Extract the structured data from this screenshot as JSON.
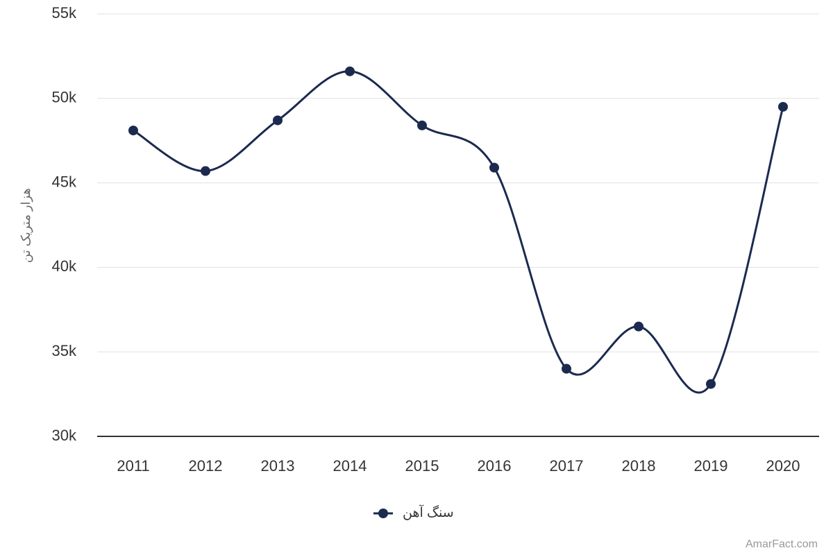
{
  "chart_data": {
    "type": "line",
    "y_label": "هزار متریک تن",
    "categories": [
      "2011",
      "2012",
      "2013",
      "2014",
      "2015",
      "2016",
      "2017",
      "2018",
      "2019",
      "2020"
    ],
    "series": [
      {
        "name": "سنگ آهن",
        "color": "#1b2a4e",
        "values": [
          48100,
          45700,
          48700,
          51600,
          48400,
          45900,
          34000,
          36500,
          33100,
          49500
        ]
      }
    ],
    "ylim": [
      30000,
      55000
    ],
    "yticks": [
      {
        "value": 30000,
        "label": "30k"
      },
      {
        "value": 35000,
        "label": "35k"
      },
      {
        "value": 40000,
        "label": "40k"
      },
      {
        "value": 45000,
        "label": "45k"
      },
      {
        "value": 50000,
        "label": "50k"
      },
      {
        "value": 55000,
        "label": "55k"
      }
    ],
    "grid": true,
    "smooth": true,
    "credit": "AmarFact.com"
  }
}
